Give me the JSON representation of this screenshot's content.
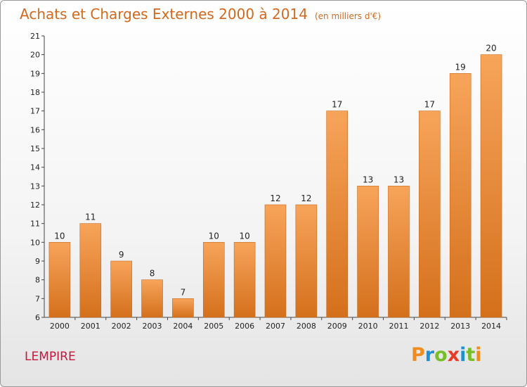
{
  "header": {
    "title": "Achats et Charges Externes 2000 à 2014",
    "subtitle": "(en milliers d'€)"
  },
  "footer": {
    "commune": "LEMPIRE",
    "logo_text": "Proxiti",
    "logo_colors": [
      "#f08c1e",
      "#1e90d2",
      "#78be28",
      "#e63c28",
      "#1e90d2",
      "#78be28",
      "#f08c1e"
    ]
  },
  "colors": {
    "bar_light": "#f7a45a",
    "bar_dark": "#d4701c",
    "title": "#d2691e",
    "commune": "#c8163b"
  },
  "chart_data": {
    "type": "bar",
    "title": "Achats et Charges Externes 2000 à 2014",
    "subtitle": "(en milliers d'€)",
    "xlabel": "",
    "ylabel": "",
    "ylim": [
      6,
      21
    ],
    "yticks": [
      6,
      7,
      8,
      9,
      10,
      11,
      12,
      13,
      14,
      15,
      16,
      17,
      18,
      19,
      20,
      21
    ],
    "grid": false,
    "categories": [
      "2000",
      "2001",
      "2002",
      "2003",
      "2004",
      "2005",
      "2006",
      "2007",
      "2008",
      "2009",
      "2010",
      "2011",
      "2012",
      "2013",
      "2014"
    ],
    "values": [
      10,
      11,
      9,
      8,
      7,
      10,
      10,
      12,
      12,
      17,
      13,
      13,
      17,
      19,
      20
    ]
  }
}
